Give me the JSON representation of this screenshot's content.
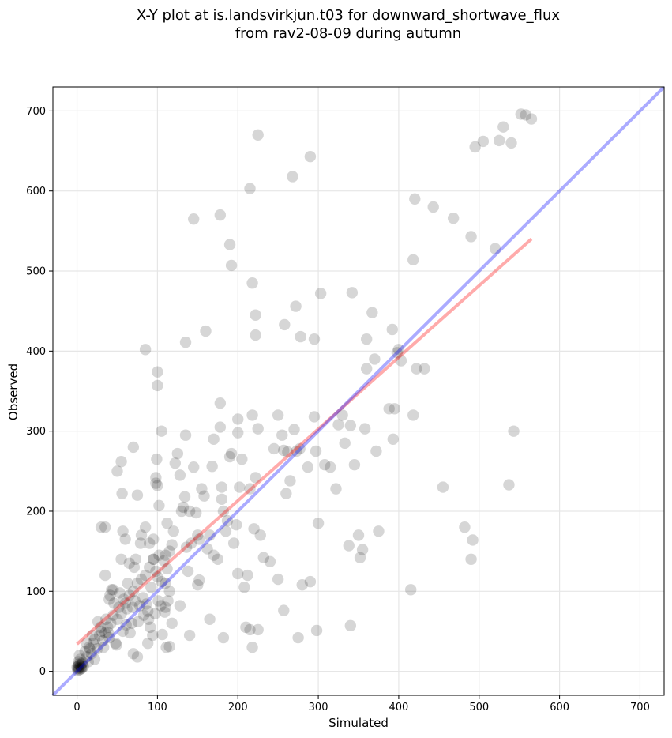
{
  "chart_data": {
    "type": "scatter",
    "title": "X-Y plot at is.landsvirkjun.t03 for downward_shortwave_flux",
    "subtitle": "from rav2-08-09 during autumn",
    "xlabel": "Simulated",
    "ylabel": "Observed",
    "xlim": [
      -30,
      730
    ],
    "ylim": [
      -30,
      730
    ],
    "xticks": [
      0,
      100,
      200,
      300,
      400,
      500,
      600,
      700
    ],
    "yticks": [
      0,
      100,
      200,
      300,
      400,
      500,
      600,
      700
    ],
    "grid": true,
    "colors": {
      "points": "#000000",
      "fit_line": "#ff0000",
      "identity_line": "#0000ff"
    },
    "series": [
      {
        "type": "scatter",
        "points": [
          [
            0,
            5
          ],
          [
            1,
            6
          ],
          [
            2,
            4
          ],
          [
            3,
            8
          ],
          [
            2,
            12
          ],
          [
            4,
            15
          ],
          [
            5,
            3
          ],
          [
            6,
            9
          ],
          [
            3,
            20
          ],
          [
            8,
            6
          ],
          [
            1,
            3
          ],
          [
            4,
            7
          ],
          [
            2,
            9
          ],
          [
            5,
            5
          ],
          [
            7,
            11
          ],
          [
            1,
            1
          ],
          [
            3,
            2
          ],
          [
            6,
            4
          ],
          [
            10,
            25
          ],
          [
            12,
            18
          ],
          [
            15,
            30
          ],
          [
            18,
            22
          ],
          [
            20,
            35
          ],
          [
            22,
            40
          ],
          [
            25,
            28
          ],
          [
            28,
            45
          ],
          [
            30,
            50
          ],
          [
            32,
            38
          ],
          [
            35,
            48
          ],
          [
            38,
            55
          ],
          [
            40,
            42
          ],
          [
            42,
            60
          ],
          [
            45,
            70
          ],
          [
            48,
            35
          ],
          [
            50,
            65
          ],
          [
            52,
            80
          ],
          [
            55,
            72
          ],
          [
            58,
            90
          ],
          [
            60,
            85
          ],
          [
            62,
            78
          ],
          [
            65,
            95
          ],
          [
            68,
            60
          ],
          [
            70,
            100
          ],
          [
            72,
            88
          ],
          [
            75,
            110
          ],
          [
            78,
            82
          ],
          [
            80,
            115
          ],
          [
            82,
            92
          ],
          [
            85,
            120
          ],
          [
            88,
            75
          ],
          [
            90,
            130
          ],
          [
            92,
            105
          ],
          [
            95,
            140
          ],
          [
            98,
            125
          ],
          [
            100,
            118
          ],
          [
            102,
            145
          ],
          [
            105,
            112
          ],
          [
            108,
            138
          ],
          [
            110,
            80
          ],
          [
            112,
            128
          ],
          [
            12,
            35
          ],
          [
            14,
            12
          ],
          [
            16,
            28
          ],
          [
            19,
            45
          ],
          [
            22,
            15
          ],
          [
            26,
            62
          ],
          [
            29,
            55
          ],
          [
            33,
            30
          ],
          [
            36,
            65
          ],
          [
            39,
            48
          ],
          [
            41,
            95
          ],
          [
            43,
            102
          ],
          [
            46,
            85
          ],
          [
            49,
            33
          ],
          [
            53,
            98
          ],
          [
            57,
            50
          ],
          [
            61,
            58
          ],
          [
            63,
            110
          ],
          [
            66,
            48
          ],
          [
            69,
            80
          ],
          [
            71,
            130
          ],
          [
            73,
            140
          ],
          [
            76,
            62
          ],
          [
            79,
            160
          ],
          [
            83,
            70
          ],
          [
            86,
            84
          ],
          [
            89,
            65
          ],
          [
            91,
            55
          ],
          [
            94,
            45
          ],
          [
            97,
            72
          ],
          [
            101,
            88
          ],
          [
            104,
            82
          ],
          [
            106,
            46
          ],
          [
            109,
            74
          ],
          [
            111,
            30
          ],
          [
            113,
            88
          ],
          [
            115,
            100
          ],
          [
            118,
            60
          ],
          [
            30,
            180
          ],
          [
            35,
            120
          ],
          [
            40,
            90
          ],
          [
            45,
            102
          ],
          [
            50,
            250
          ],
          [
            55,
            262
          ],
          [
            56,
            222
          ],
          [
            57,
            175
          ],
          [
            60,
            165
          ],
          [
            70,
            280
          ],
          [
            75,
            220
          ],
          [
            80,
            170
          ],
          [
            85,
            180
          ],
          [
            85,
            402
          ],
          [
            90,
            160
          ],
          [
            95,
            165
          ],
          [
            98,
            235
          ],
          [
            98,
            242
          ],
          [
            99,
            265
          ],
          [
            100,
            232
          ],
          [
            100,
            357
          ],
          [
            100,
            374
          ],
          [
            102,
            207
          ],
          [
            105,
            300
          ],
          [
            110,
            110
          ],
          [
            110,
            145
          ],
          [
            112,
            185
          ],
          [
            115,
            150
          ],
          [
            118,
            158
          ],
          [
            120,
            175
          ],
          [
            122,
            260
          ],
          [
            125,
            272
          ],
          [
            128,
            245
          ],
          [
            130,
            200
          ],
          [
            132,
            205
          ],
          [
            134,
            218
          ],
          [
            135,
            295
          ],
          [
            136,
            155
          ],
          [
            138,
            125
          ],
          [
            140,
            200
          ],
          [
            142,
            160
          ],
          [
            145,
            255
          ],
          [
            148,
            198
          ],
          [
            150,
            170
          ],
          [
            152,
            165
          ],
          [
            155,
            228
          ],
          [
            158,
            219
          ],
          [
            162,
            153
          ],
          [
            165,
            170
          ],
          [
            168,
            256
          ],
          [
            170,
            290
          ],
          [
            175,
            140
          ],
          [
            178,
            305
          ],
          [
            178,
            335
          ],
          [
            180,
            215
          ],
          [
            180,
            230
          ],
          [
            182,
            200
          ],
          [
            185,
            175
          ],
          [
            187,
            188
          ],
          [
            190,
            268
          ],
          [
            192,
            272
          ],
          [
            195,
            160
          ],
          [
            198,
            183
          ],
          [
            200,
            298
          ],
          [
            200,
            315
          ],
          [
            202,
            230
          ],
          [
            205,
            265
          ],
          [
            208,
            105
          ],
          [
            212,
            120
          ],
          [
            215,
            228
          ],
          [
            218,
            320
          ],
          [
            220,
            178
          ],
          [
            222,
            242
          ],
          [
            225,
            303
          ],
          [
            228,
            170
          ],
          [
            232,
            142
          ],
          [
            240,
            137
          ],
          [
            245,
            278
          ],
          [
            250,
            320
          ],
          [
            255,
            295
          ],
          [
            257,
            276
          ],
          [
            260,
            222
          ],
          [
            262,
            274
          ],
          [
            265,
            238
          ],
          [
            270,
            302
          ],
          [
            273,
            275
          ],
          [
            277,
            278
          ],
          [
            280,
            108
          ],
          [
            287,
            255
          ],
          [
            290,
            112
          ],
          [
            295,
            318
          ],
          [
            297,
            275
          ],
          [
            300,
            185
          ],
          [
            308,
            258
          ],
          [
            315,
            255
          ],
          [
            322,
            228
          ],
          [
            325,
            308
          ],
          [
            330,
            320
          ],
          [
            333,
            285
          ],
          [
            338,
            157
          ],
          [
            340,
            307
          ],
          [
            345,
            258
          ],
          [
            350,
            170
          ],
          [
            352,
            142
          ],
          [
            355,
            152
          ],
          [
            358,
            303
          ],
          [
            360,
            378
          ],
          [
            370,
            390
          ],
          [
            372,
            275
          ],
          [
            375,
            175
          ],
          [
            388,
            328
          ],
          [
            393,
            290
          ],
          [
            395,
            328
          ],
          [
            398,
            398
          ],
          [
            400,
            402
          ],
          [
            403,
            388
          ],
          [
            418,
            320
          ],
          [
            422,
            378
          ],
          [
            432,
            378
          ],
          [
            145,
            565
          ],
          [
            178,
            570
          ],
          [
            190,
            533
          ],
          [
            192,
            507
          ],
          [
            215,
            603
          ],
          [
            225,
            670
          ],
          [
            268,
            618
          ],
          [
            290,
            643
          ],
          [
            303,
            472
          ],
          [
            342,
            473
          ],
          [
            367,
            448
          ],
          [
            272,
            456
          ],
          [
            258,
            433
          ],
          [
            222,
            445
          ],
          [
            218,
            485
          ],
          [
            222,
            420
          ],
          [
            278,
            418
          ],
          [
            295,
            415
          ],
          [
            360,
            415
          ],
          [
            392,
            427
          ],
          [
            418,
            514
          ],
          [
            420,
            590
          ],
          [
            443,
            580
          ],
          [
            468,
            566
          ],
          [
            490,
            543
          ],
          [
            520,
            528
          ],
          [
            495,
            655
          ],
          [
            505,
            662
          ],
          [
            525,
            663
          ],
          [
            530,
            680
          ],
          [
            540,
            660
          ],
          [
            552,
            696
          ],
          [
            558,
            695
          ],
          [
            565,
            690
          ],
          [
            482,
            180
          ],
          [
            492,
            164
          ],
          [
            490,
            140
          ],
          [
            415,
            102
          ],
          [
            455,
            230
          ],
          [
            537,
            233
          ],
          [
            543,
            300
          ],
          [
            135,
            411
          ],
          [
            160,
            425
          ],
          [
            152,
            114
          ],
          [
            165,
            65
          ],
          [
            182,
            42
          ],
          [
            200,
            122
          ],
          [
            215,
            52
          ],
          [
            218,
            30
          ],
          [
            225,
            52
          ],
          [
            250,
            115
          ],
          [
            257,
            76
          ],
          [
            275,
            42
          ],
          [
            298,
            51
          ],
          [
            340,
            57
          ],
          [
            35,
            180
          ],
          [
            55,
            140
          ],
          [
            65,
            135
          ],
          [
            70,
            22
          ],
          [
            75,
            18
          ],
          [
            88,
            35
          ],
          [
            95,
            140
          ],
          [
            115,
            31
          ],
          [
            128,
            82
          ],
          [
            140,
            45
          ],
          [
            150,
            108
          ],
          [
            170,
            145
          ],
          [
            210,
            55
          ]
        ]
      },
      {
        "type": "line",
        "name": "",
        "points": [
          [
            0,
            34
          ],
          [
            565,
            540
          ]
        ]
      },
      {
        "type": "line",
        "name": "",
        "points": [
          [
            -30,
            -30
          ],
          [
            730,
            730
          ]
        ]
      }
    ]
  }
}
